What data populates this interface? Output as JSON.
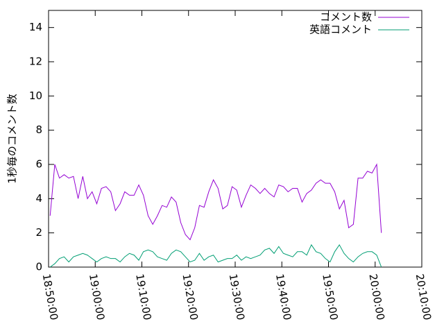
{
  "chart_data": {
    "type": "line",
    "ylabel": "1秒毎のコメント数",
    "x": [
      "18:50:20",
      "18:51:20",
      "18:52:20",
      "18:53:20",
      "18:54:20",
      "18:55:20",
      "18:56:20",
      "18:57:20",
      "18:58:20",
      "18:59:20",
      "19:00:20",
      "19:01:20",
      "19:02:20",
      "19:03:20",
      "19:04:20",
      "19:05:20",
      "19:06:20",
      "19:07:20",
      "19:08:20",
      "19:09:20",
      "19:10:20",
      "19:11:20",
      "19:12:20",
      "19:13:20",
      "19:14:20",
      "19:15:20",
      "19:16:20",
      "19:17:20",
      "19:18:20",
      "19:19:20",
      "19:20:20",
      "19:21:20",
      "19:22:20",
      "19:23:20",
      "19:24:20",
      "19:25:20",
      "19:26:20",
      "19:27:20",
      "19:28:20",
      "19:29:20",
      "19:30:20",
      "19:31:20",
      "19:32:20",
      "19:33:20",
      "19:34:20",
      "19:35:20",
      "19:36:20",
      "19:37:20",
      "19:38:20",
      "19:39:20",
      "19:40:20",
      "19:41:20",
      "19:42:20",
      "19:43:20",
      "19:44:20",
      "19:45:20",
      "19:46:20",
      "19:47:20",
      "19:48:20",
      "19:49:20",
      "19:50:20",
      "19:51:20",
      "19:52:20",
      "19:53:20",
      "19:54:20",
      "19:55:20",
      "19:56:20",
      "19:57:20",
      "19:58:20",
      "19:59:20",
      "20:00:20",
      "20:01:20"
    ],
    "series": [
      {
        "name": "コメント数",
        "color": "#9400d3",
        "values": [
          3.0,
          6.0,
          5.2,
          5.4,
          5.2,
          5.3,
          4.0,
          5.3,
          4.0,
          4.4,
          3.7,
          4.6,
          4.7,
          4.4,
          3.3,
          3.7,
          4.4,
          4.2,
          4.2,
          4.8,
          4.2,
          3.0,
          2.5,
          3.0,
          3.6,
          3.5,
          4.1,
          3.8,
          2.6,
          1.9,
          1.6,
          2.3,
          3.6,
          3.5,
          4.4,
          5.1,
          4.6,
          3.4,
          3.6,
          4.7,
          4.5,
          3.5,
          4.2,
          4.8,
          4.6,
          4.3,
          4.6,
          4.3,
          4.1,
          4.8,
          4.7,
          4.4,
          4.6,
          4.6,
          3.8,
          4.3,
          4.5,
          4.9,
          5.1,
          4.9,
          4.9,
          4.4,
          3.4,
          3.9,
          2.3,
          2.5,
          5.2,
          5.2,
          5.6,
          5.5,
          6.0,
          2.0
        ]
      },
      {
        "name": "英語コメント",
        "color": "#009e73",
        "values": [
          0.0,
          0.2,
          0.5,
          0.6,
          0.3,
          0.6,
          0.7,
          0.8,
          0.7,
          0.5,
          0.3,
          0.5,
          0.6,
          0.5,
          0.5,
          0.3,
          0.6,
          0.8,
          0.7,
          0.4,
          0.9,
          1.0,
          0.9,
          0.6,
          0.5,
          0.4,
          0.8,
          1.0,
          0.9,
          0.6,
          0.3,
          0.4,
          0.8,
          0.4,
          0.6,
          0.7,
          0.3,
          0.4,
          0.5,
          0.5,
          0.7,
          0.4,
          0.6,
          0.5,
          0.6,
          0.7,
          1.0,
          1.1,
          0.8,
          1.2,
          0.8,
          0.7,
          0.6,
          0.9,
          0.9,
          0.7,
          1.3,
          0.9,
          0.8,
          0.5,
          0.3,
          0.9,
          1.3,
          0.8,
          0.5,
          0.3,
          0.6,
          0.8,
          0.9,
          0.9,
          0.7,
          0.0
        ]
      }
    ],
    "xlim": [
      "18:50:00",
      "20:10:00"
    ],
    "xticks": [
      "18:50:00",
      "19:00:00",
      "19:10:00",
      "19:20:00",
      "19:30:00",
      "19:40:00",
      "19:50:00",
      "20:00:00",
      "20:10:00"
    ],
    "ylim": [
      0,
      15
    ],
    "yticks": [
      0,
      2,
      4,
      6,
      8,
      10,
      12,
      14
    ],
    "legend": "top-right"
  }
}
